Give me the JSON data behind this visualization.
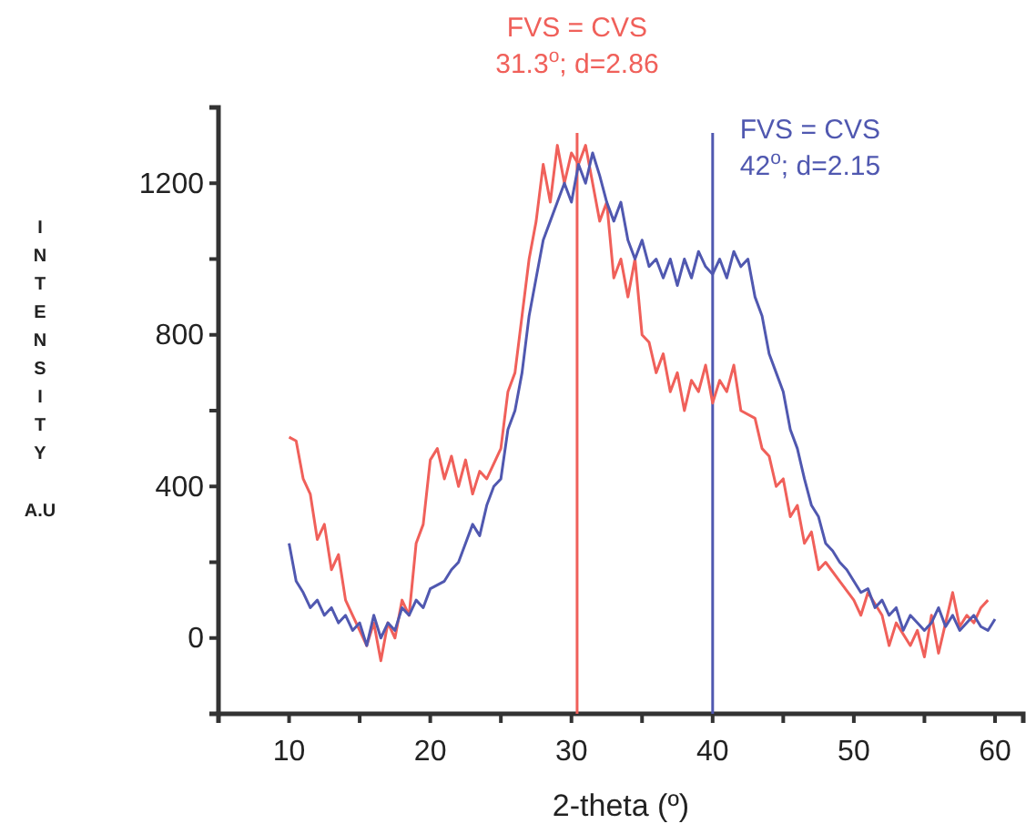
{
  "chart_data": {
    "type": "line",
    "xlabel": "2-theta (º)",
    "ylabel": "INTENSITY A.U",
    "xlim": [
      5,
      62
    ],
    "xticks": [
      {
        "value": 5,
        "label": null
      },
      10,
      {
        "value": 15,
        "label": null
      },
      20,
      {
        "value": 25,
        "label": null
      },
      30,
      {
        "value": 35,
        "label": null
      },
      40,
      {
        "value": 45,
        "label": null
      },
      50,
      {
        "value": 55,
        "label": null
      },
      60
    ],
    "ylim": [
      -200,
      1400
    ],
    "yticks": [
      {
        "value": -200,
        "label": null
      },
      0,
      {
        "value": 200,
        "label": null
      },
      400,
      {
        "value": 600,
        "label": null
      },
      800,
      {
        "value": 1000,
        "label": null
      },
      1200,
      {
        "value": 1400,
        "label": null
      }
    ],
    "grid": false,
    "marker": "none",
    "line_style": "solid",
    "annotations": [
      "FVS = CVS\n31.3$^{o}$; d=2.86",
      "FVS = CVS\n42$^{o}$; d=2.15"
    ],
    "ref_lines": [
      {
        "axis": "x",
        "value": 30.4,
        "color": "#f0605a"
      },
      {
        "axis": "x",
        "value": 40,
        "color": "#5058b0"
      }
    ],
    "series": [
      {
        "color": "#f0605a",
        "x": [
          10,
          10.5,
          11,
          11.5,
          12,
          12.5,
          13,
          13.5,
          14,
          14.5,
          15,
          15.5,
          16,
          16.5,
          17,
          17.5,
          18,
          18.5,
          19,
          19.5,
          20,
          20.5,
          21,
          21.5,
          22,
          22.5,
          23,
          23.5,
          24,
          25,
          25.5,
          26,
          26.5,
          27,
          27.5,
          28,
          28.5,
          29,
          29.5,
          30,
          30.5,
          31,
          31.5,
          32,
          32.5,
          33,
          33.5,
          34,
          34.5,
          35,
          35.5,
          36,
          36.5,
          37,
          37.5,
          38,
          38.5,
          39,
          39.5,
          40,
          40.5,
          41,
          41.5,
          42,
          43,
          43.5,
          44,
          44.5,
          45,
          45.5,
          46,
          46.5,
          47,
          47.5,
          48,
          49,
          50,
          50.5,
          51,
          52,
          52.5,
          53,
          54,
          54.5,
          55,
          55.5,
          56,
          57,
          57.5,
          58,
          58.5,
          59,
          59.5
        ],
        "values": [
          530,
          520,
          420,
          380,
          260,
          300,
          180,
          220,
          100,
          60,
          20,
          -20,
          40,
          -60,
          40,
          0,
          100,
          60,
          250,
          300,
          470,
          500,
          420,
          480,
          400,
          470,
          380,
          440,
          420,
          500,
          650,
          700,
          850,
          1000,
          1100,
          1250,
          1150,
          1300,
          1200,
          1280,
          1250,
          1300,
          1200,
          1100,
          1150,
          950,
          1000,
          900,
          1000,
          800,
          780,
          700,
          750,
          650,
          700,
          600,
          680,
          650,
          720,
          620,
          680,
          650,
          720,
          600,
          580,
          500,
          480,
          400,
          420,
          320,
          350,
          250,
          280,
          180,
          200,
          150,
          100,
          60,
          120,
          60,
          -20,
          40,
          -20,
          20,
          -50,
          60,
          -40,
          120,
          30,
          60,
          40,
          80,
          100
        ]
      },
      {
        "color": "#5058b0",
        "x": [
          10,
          10.5,
          11,
          11.5,
          12,
          12.5,
          13,
          13.5,
          14,
          14.5,
          15,
          15.5,
          16,
          16.5,
          17,
          17.5,
          18,
          18.5,
          19,
          19.5,
          20,
          21,
          21.5,
          22,
          22.5,
          23,
          23.5,
          24,
          24.5,
          25,
          25.5,
          26,
          26.5,
          27,
          27.5,
          28,
          28.5,
          29,
          29.5,
          30,
          30.5,
          31,
          31.5,
          32,
          32.5,
          33,
          33.5,
          34,
          34.5,
          35,
          35.5,
          36,
          36.5,
          37,
          37.5,
          38,
          38.5,
          39,
          39.5,
          40,
          40.5,
          41,
          41.5,
          42,
          42.5,
          43,
          43.5,
          44,
          44.5,
          45,
          45.5,
          46,
          46.5,
          47,
          47.5,
          48,
          48.5,
          49,
          49.5,
          50,
          50.5,
          51,
          51.5,
          52,
          52.5,
          53,
          53.5,
          54,
          54.5,
          55,
          55.5,
          56,
          56.5,
          57,
          57.5,
          58,
          58.5,
          59,
          59.5,
          60
        ],
        "values": [
          250,
          150,
          120,
          80,
          100,
          60,
          80,
          40,
          60,
          20,
          40,
          -20,
          60,
          0,
          40,
          20,
          80,
          60,
          100,
          80,
          130,
          150,
          180,
          200,
          250,
          300,
          270,
          350,
          400,
          420,
          550,
          600,
          700,
          850,
          950,
          1050,
          1100,
          1150,
          1200,
          1150,
          1250,
          1200,
          1280,
          1220,
          1150,
          1100,
          1150,
          1050,
          1000,
          1050,
          980,
          1000,
          950,
          1000,
          930,
          1000,
          950,
          1020,
          980,
          960,
          1000,
          950,
          1020,
          980,
          1000,
          900,
          850,
          750,
          700,
          650,
          550,
          500,
          420,
          350,
          320,
          250,
          230,
          200,
          180,
          150,
          120,
          130,
          80,
          100,
          60,
          80,
          20,
          60,
          40,
          20,
          40,
          80,
          30,
          60,
          20,
          40,
          60,
          30,
          20,
          50
        ]
      }
    ]
  }
}
